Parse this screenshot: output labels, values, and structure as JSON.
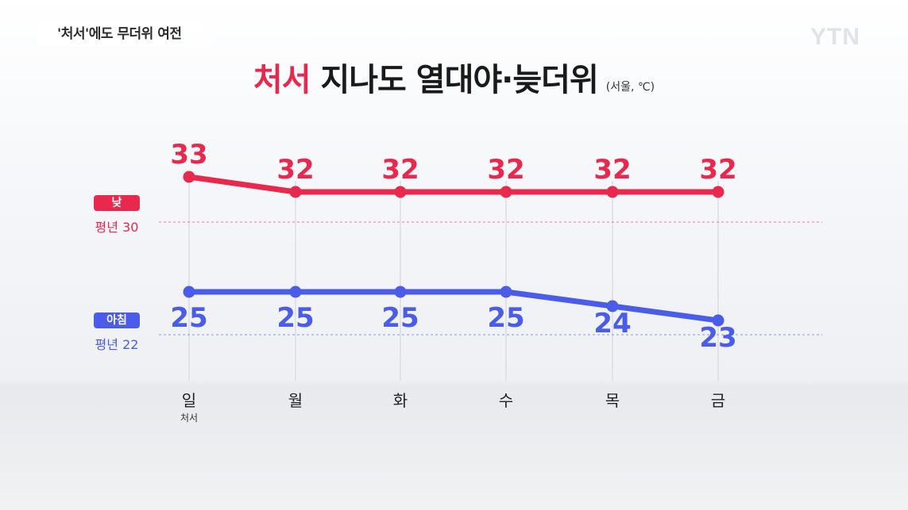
{
  "caption": "'처서'에도 무더위 여전",
  "logo": "YTN",
  "title": {
    "highlight": "처서",
    "rest": " 지나도 열대야·늦더위",
    "unit": "(서울, ℃)"
  },
  "legend": {
    "day_label": "낮",
    "day_avg": "평년 30",
    "morning_label": "아침",
    "morning_avg": "평년 22"
  },
  "colors": {
    "day": "#e8294d",
    "morning": "#4a5ce8"
  },
  "chart_data": {
    "type": "line",
    "categories": [
      "일",
      "월",
      "화",
      "수",
      "목",
      "금"
    ],
    "category_notes": [
      "처서",
      "",
      "",
      "",
      "",
      ""
    ],
    "series": [
      {
        "name": "낮",
        "values": [
          33,
          32,
          32,
          32,
          32,
          32
        ]
      },
      {
        "name": "아침",
        "values": [
          25,
          25,
          25,
          25,
          24,
          23
        ]
      }
    ],
    "reference_lines": [
      {
        "label": "평년 30",
        "value": 30
      },
      {
        "label": "평년 22",
        "value": 22
      }
    ]
  }
}
